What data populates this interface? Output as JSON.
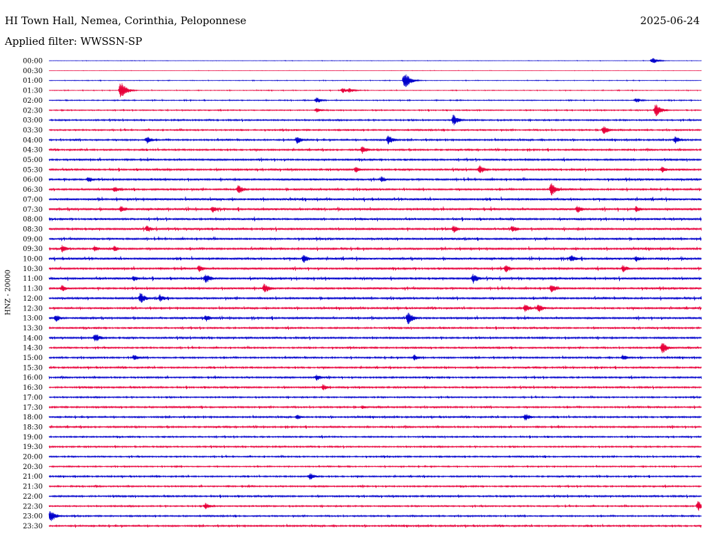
{
  "header": {
    "station": "HI Town Hall, Nemea, Corinthia, Peloponnese",
    "date": "2025-06-24",
    "filter": "Applied filter: WWSSN-SP"
  },
  "chart_data": {
    "type": "line",
    "title": "HI Town Hall, Nemea, Corinthia, Peloponnese",
    "ylabel": "HNZ - 20000",
    "row_labels": [
      "00:00",
      "00:30",
      "01:00",
      "01:30",
      "02:00",
      "02:30",
      "03:00",
      "03:30",
      "04:00",
      "04:30",
      "05:00",
      "05:30",
      "06:00",
      "06:30",
      "07:00",
      "07:30",
      "08:00",
      "08:30",
      "09:00",
      "09:30",
      "10:00",
      "10:30",
      "11:00",
      "11:30",
      "12:00",
      "12:30",
      "13:00",
      "13:30",
      "14:00",
      "14:30",
      "15:00",
      "15:30",
      "16:00",
      "16:30",
      "17:00",
      "17:30",
      "18:00",
      "18:30",
      "19:00",
      "19:30",
      "20:00",
      "20:30",
      "21:00",
      "21:30",
      "22:00",
      "22:30",
      "23:00",
      "23:30"
    ],
    "trace_colors": [
      "#0000cc",
      "#e8003a"
    ],
    "color_pattern": "alternating starting with blue",
    "noise_level": [
      0.2,
      0.15,
      0.3,
      0.35,
      0.5,
      0.6,
      0.8,
      0.8,
      0.9,
      0.9,
      1.0,
      1.0,
      1.1,
      1.0,
      1.2,
      1.2,
      1.1,
      1.2,
      1.1,
      1.1,
      1.2,
      1.1,
      1.2,
      1.1,
      1.1,
      1.0,
      1.1,
      0.9,
      1.0,
      0.9,
      0.9,
      0.9,
      0.9,
      0.9,
      0.8,
      0.9,
      0.9,
      0.9,
      0.8,
      0.8,
      0.8,
      0.7,
      0.8,
      0.8,
      0.9,
      0.8,
      0.8,
      0.9
    ],
    "events": [
      {
        "row": 0,
        "t": 0.925,
        "amp": 5
      },
      {
        "row": 2,
        "t": 0.545,
        "amp": 14
      },
      {
        "row": 3,
        "t": 0.11,
        "amp": 14
      },
      {
        "row": 3,
        "t": 0.45,
        "amp": 4
      },
      {
        "row": 3,
        "t": 0.46,
        "amp": 4
      },
      {
        "row": 4,
        "t": 0.41,
        "amp": 5
      },
      {
        "row": 4,
        "t": 0.9,
        "amp": 4
      },
      {
        "row": 5,
        "t": 0.93,
        "amp": 10
      },
      {
        "row": 5,
        "t": 0.41,
        "amp": 4
      },
      {
        "row": 6,
        "t": 0.62,
        "amp": 9
      },
      {
        "row": 7,
        "t": 0.85,
        "amp": 7
      },
      {
        "row": 8,
        "t": 0.15,
        "amp": 6
      },
      {
        "row": 8,
        "t": 0.38,
        "amp": 6
      },
      {
        "row": 8,
        "t": 0.52,
        "amp": 8
      },
      {
        "row": 8,
        "t": 0.96,
        "amp": 6
      },
      {
        "row": 9,
        "t": 0.48,
        "amp": 6
      },
      {
        "row": 11,
        "t": 0.47,
        "amp": 5
      },
      {
        "row": 11,
        "t": 0.66,
        "amp": 7
      },
      {
        "row": 11,
        "t": 0.94,
        "amp": 5
      },
      {
        "row": 12,
        "t": 0.06,
        "amp": 5
      },
      {
        "row": 12,
        "t": 0.51,
        "amp": 5
      },
      {
        "row": 13,
        "t": 0.1,
        "amp": 5
      },
      {
        "row": 13,
        "t": 0.29,
        "amp": 8
      },
      {
        "row": 13,
        "t": 0.77,
        "amp": 10
      },
      {
        "row": 15,
        "t": 0.11,
        "amp": 6
      },
      {
        "row": 15,
        "t": 0.25,
        "amp": 6
      },
      {
        "row": 15,
        "t": 0.81,
        "amp": 6
      },
      {
        "row": 15,
        "t": 0.9,
        "amp": 5
      },
      {
        "row": 17,
        "t": 0.15,
        "amp": 6
      },
      {
        "row": 17,
        "t": 0.62,
        "amp": 6
      },
      {
        "row": 17,
        "t": 0.71,
        "amp": 6
      },
      {
        "row": 19,
        "t": 0.02,
        "amp": 6
      },
      {
        "row": 19,
        "t": 0.07,
        "amp": 5
      },
      {
        "row": 19,
        "t": 0.1,
        "amp": 5
      },
      {
        "row": 20,
        "t": 0.39,
        "amp": 7
      },
      {
        "row": 20,
        "t": 0.8,
        "amp": 6
      },
      {
        "row": 20,
        "t": 0.9,
        "amp": 5
      },
      {
        "row": 21,
        "t": 0.23,
        "amp": 6
      },
      {
        "row": 21,
        "t": 0.7,
        "amp": 6
      },
      {
        "row": 21,
        "t": 0.88,
        "amp": 6
      },
      {
        "row": 22,
        "t": 0.13,
        "amp": 5
      },
      {
        "row": 22,
        "t": 0.24,
        "amp": 8
      },
      {
        "row": 22,
        "t": 0.65,
        "amp": 8
      },
      {
        "row": 23,
        "t": 0.02,
        "amp": 5
      },
      {
        "row": 23,
        "t": 0.33,
        "amp": 8
      },
      {
        "row": 23,
        "t": 0.77,
        "amp": 7
      },
      {
        "row": 24,
        "t": 0.14,
        "amp": 9
      },
      {
        "row": 24,
        "t": 0.17,
        "amp": 6
      },
      {
        "row": 25,
        "t": 0.73,
        "amp": 7
      },
      {
        "row": 25,
        "t": 0.75,
        "amp": 7
      },
      {
        "row": 26,
        "t": 0.01,
        "amp": 6
      },
      {
        "row": 26,
        "t": 0.24,
        "amp": 6
      },
      {
        "row": 26,
        "t": 0.55,
        "amp": 10
      },
      {
        "row": 28,
        "t": 0.07,
        "amp": 8
      },
      {
        "row": 29,
        "t": 0.94,
        "amp": 9
      },
      {
        "row": 30,
        "t": 0.13,
        "amp": 5
      },
      {
        "row": 30,
        "t": 0.56,
        "amp": 5
      },
      {
        "row": 30,
        "t": 0.88,
        "amp": 5
      },
      {
        "row": 32,
        "t": 0.41,
        "amp": 5
      },
      {
        "row": 33,
        "t": 0.42,
        "amp": 5
      },
      {
        "row": 35,
        "t": 0.48,
        "amp": 3
      },
      {
        "row": 36,
        "t": 0.38,
        "amp": 4
      },
      {
        "row": 36,
        "t": 0.73,
        "amp": 6
      },
      {
        "row": 42,
        "t": 0.4,
        "amp": 6
      },
      {
        "row": 45,
        "t": 0.24,
        "amp": 5
      },
      {
        "row": 45,
        "t": 0.995,
        "amp": 8
      },
      {
        "row": 46,
        "t": 0.002,
        "amp": 10
      }
    ]
  }
}
